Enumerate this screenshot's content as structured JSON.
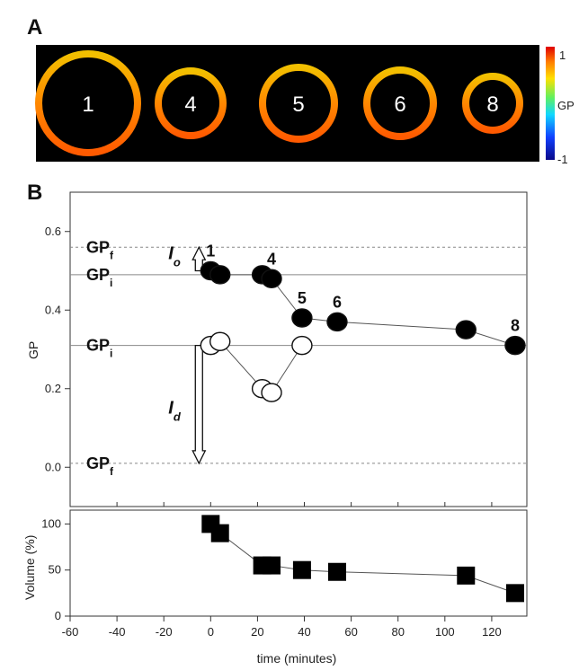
{
  "panel_a": {
    "label": "A",
    "rings": [
      {
        "label": "1"
      },
      {
        "label": "4"
      },
      {
        "label": "5"
      },
      {
        "label": "6"
      },
      {
        "label": "8"
      }
    ],
    "colorbar": {
      "label": "GP",
      "max_label": "1",
      "min_label": "-1",
      "max": 1,
      "min": -1
    }
  },
  "panel_b": {
    "label": "B",
    "colors": {
      "line": "#555555",
      "marker": "#000000",
      "ref_line": "#888888"
    }
  },
  "chart_data": [
    {
      "type": "scatter",
      "ylabel": "GP",
      "xlim": [
        -60,
        135
      ],
      "ylim": [
        -0.1,
        0.7
      ],
      "yticks": [
        "0.0",
        "0.2",
        "0.4",
        "0.6"
      ],
      "yticks_values": [
        0.0,
        0.2,
        0.4,
        0.6
      ],
      "series": [
        {
          "marker": "filled-circle",
          "x": [
            0,
            4,
            22,
            26,
            39,
            54,
            109,
            130
          ],
          "y": [
            0.5,
            0.49,
            0.49,
            0.48,
            0.38,
            0.37,
            0.35,
            0.31
          ]
        },
        {
          "marker": "open-circle",
          "x": [
            0,
            4,
            22,
            26,
            39
          ],
          "y": [
            0.31,
            0.32,
            0.2,
            0.19,
            0.31
          ]
        }
      ],
      "point_labels": [
        {
          "text": "1",
          "x": 0,
          "y": 0.5
        },
        {
          "text": "4",
          "x": 26,
          "y": 0.48
        },
        {
          "text": "5",
          "x": 39,
          "y": 0.38
        },
        {
          "text": "6",
          "x": 54,
          "y": 0.37
        },
        {
          "text": "8",
          "x": 130,
          "y": 0.31
        }
      ],
      "reference_lines": [
        {
          "label": "GP",
          "sub": "f",
          "y": 0.56,
          "style": "dashed"
        },
        {
          "label": "GP",
          "sub": "i",
          "y": 0.49,
          "style": "solid"
        },
        {
          "label": "GP",
          "sub": "i",
          "y": 0.31,
          "style": "solid"
        },
        {
          "label": "GP",
          "sub": "f",
          "y": 0.01,
          "style": "dashed"
        }
      ],
      "arrows": [
        {
          "label": "I",
          "sub": "o",
          "x": -5,
          "from": 0.5,
          "to": 0.56
        },
        {
          "label": "I",
          "sub": "d",
          "x": -5,
          "from": 0.31,
          "to": 0.01
        }
      ]
    },
    {
      "type": "scatter",
      "xlabel": "time (minutes)",
      "ylabel": "Volume (%)",
      "xlim": [
        -60,
        135
      ],
      "ylim": [
        0,
        115
      ],
      "xticks": [
        "-60",
        "-40",
        "-20",
        "0",
        "20",
        "40",
        "60",
        "80",
        "100",
        "120"
      ],
      "xticks_values": [
        -60,
        -40,
        -20,
        0,
        20,
        40,
        60,
        80,
        100,
        120
      ],
      "yticks": [
        "0",
        "50",
        "100"
      ],
      "yticks_values": [
        0,
        50,
        100
      ],
      "series": [
        {
          "marker": "filled-square",
          "x": [
            0,
            4,
            22,
            26,
            39,
            54,
            109,
            130
          ],
          "y": [
            100,
            90,
            55,
            55,
            50,
            48,
            44,
            25
          ]
        }
      ]
    }
  ]
}
